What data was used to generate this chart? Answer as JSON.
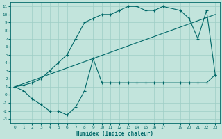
{
  "xlabel": "Humidex (Indice chaleur)",
  "bg_color": "#c2e4dc",
  "grid_color": "#9ecec6",
  "line_color": "#006868",
  "xlim": [
    -0.5,
    23.5
  ],
  "ylim": [
    -3.5,
    11.5
  ],
  "xticks": [
    0,
    1,
    2,
    3,
    4,
    5,
    6,
    7,
    8,
    9,
    10,
    11,
    12,
    13,
    14,
    15,
    16,
    17,
    19,
    20,
    21,
    22,
    23
  ],
  "yticks": [
    -3,
    -2,
    -1,
    0,
    1,
    2,
    3,
    4,
    5,
    6,
    7,
    8,
    9,
    10,
    11
  ],
  "curve1_x": [
    0,
    1,
    2,
    3,
    4,
    5,
    6,
    7,
    8,
    9,
    10,
    11,
    12,
    13,
    14,
    15,
    16,
    17,
    19,
    20,
    21,
    22,
    23
  ],
  "curve1_y": [
    1.0,
    1.2,
    1.5,
    2.0,
    3.0,
    4.0,
    5.0,
    7.0,
    9.0,
    9.5,
    10.0,
    10.0,
    10.5,
    11.0,
    11.0,
    10.5,
    10.5,
    11.0,
    10.5,
    9.5,
    7.0,
    10.5,
    2.5
  ],
  "curve2_x": [
    0,
    23
  ],
  "curve2_y": [
    1.0,
    10.0
  ],
  "curve3_x": [
    0,
    1,
    2,
    3,
    4,
    5,
    6,
    7,
    8,
    9,
    10,
    11,
    12,
    13,
    14,
    15,
    16,
    17,
    19,
    20,
    21,
    22,
    23
  ],
  "curve3_y": [
    1.0,
    0.5,
    -0.5,
    -1.2,
    -2.0,
    -2.0,
    -2.5,
    -1.5,
    0.5,
    4.5,
    1.5,
    1.5,
    1.5,
    1.5,
    1.5,
    1.5,
    1.5,
    1.5,
    1.5,
    1.5,
    1.5,
    1.5,
    2.5
  ]
}
